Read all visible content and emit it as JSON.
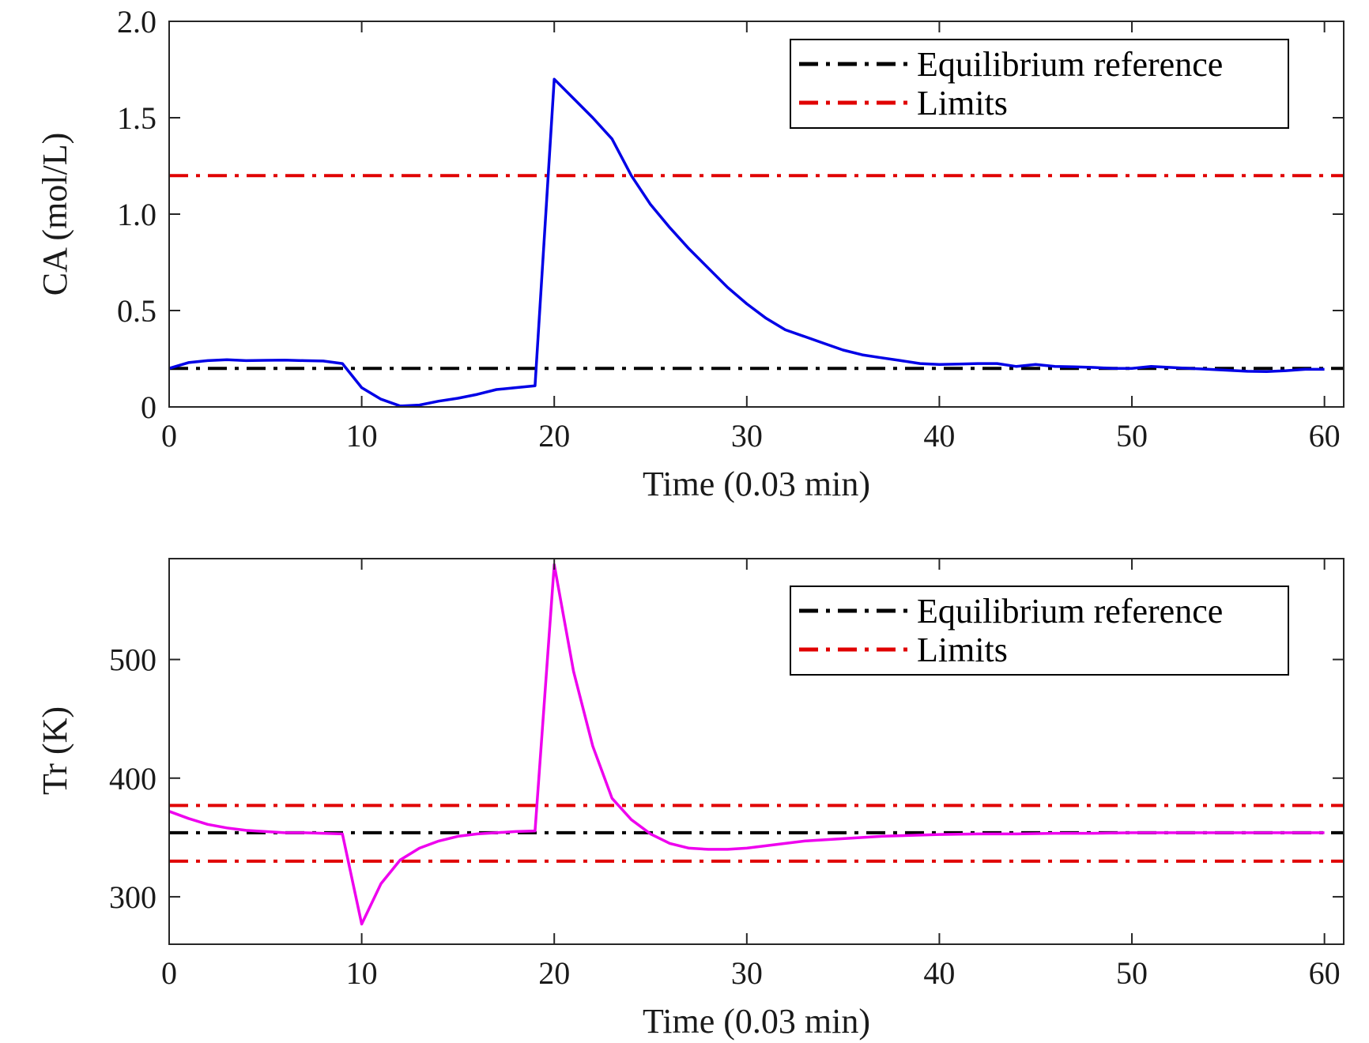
{
  "chart_data": [
    {
      "type": "line",
      "xlabel": "Time (0.03 min)",
      "ylabel": "CA (mol/L)",
      "xlim": [
        0,
        61
      ],
      "ylim": [
        0,
        2.0
      ],
      "xticks": [
        0,
        10,
        20,
        30,
        40,
        50,
        60
      ],
      "xtick_labels": [
        "0",
        "10",
        "20",
        "30",
        "40",
        "50",
        "60"
      ],
      "yticks": [
        0,
        0.5,
        1.0,
        1.5,
        2.0
      ],
      "ytick_labels": [
        "0",
        "0.5",
        "1.0",
        "1.5",
        "2.0"
      ],
      "grid": false,
      "legend_position": "top-right",
      "legend": [
        {
          "label": "Equilibrium reference",
          "color": "#000000"
        },
        {
          "label": "Limits",
          "color": "#e00000"
        }
      ],
      "reference_lines": [
        {
          "y": 0.2,
          "color": "#000000",
          "style": "dash-dot"
        },
        {
          "y": 1.2,
          "color": "#e00000",
          "style": "dash-dot"
        }
      ],
      "series": [
        {
          "color": "#0000e6",
          "x": [
            0,
            1,
            2,
            3,
            4,
            5,
            6,
            7,
            8,
            9,
            10,
            11,
            12,
            13,
            14,
            15,
            16,
            17,
            18,
            19,
            20,
            21,
            22,
            23,
            24,
            25,
            26,
            27,
            28,
            29,
            30,
            31,
            32,
            33,
            34,
            35,
            36,
            37,
            38,
            39,
            40,
            41,
            42,
            43,
            44,
            45,
            46,
            47,
            48,
            49,
            50,
            51,
            52,
            53,
            54,
            55,
            56,
            57,
            58,
            59,
            60
          ],
          "y": [
            0.2,
            0.23,
            0.24,
            0.245,
            0.24,
            0.242,
            0.243,
            0.24,
            0.238,
            0.225,
            0.1,
            0.04,
            0.005,
            0.01,
            0.03,
            0.045,
            0.065,
            0.09,
            0.1,
            0.11,
            1.7,
            1.6,
            1.5,
            1.39,
            1.2,
            1.05,
            0.93,
            0.82,
            0.72,
            0.62,
            0.535,
            0.46,
            0.4,
            0.365,
            0.33,
            0.295,
            0.27,
            0.255,
            0.24,
            0.225,
            0.22,
            0.222,
            0.225,
            0.225,
            0.21,
            0.22,
            0.21,
            0.208,
            0.205,
            0.2,
            0.2,
            0.21,
            0.205,
            0.2,
            0.195,
            0.19,
            0.185,
            0.183,
            0.188,
            0.195,
            0.195
          ]
        }
      ]
    },
    {
      "type": "line",
      "xlabel": "Time (0.03 min)",
      "ylabel": "Tr (K)",
      "xlim": [
        0,
        61
      ],
      "ylim": [
        260,
        585
      ],
      "xticks": [
        0,
        10,
        20,
        30,
        40,
        50,
        60
      ],
      "xtick_labels": [
        "0",
        "10",
        "20",
        "30",
        "40",
        "50",
        "60"
      ],
      "yticks": [
        300,
        400,
        500
      ],
      "ytick_labels": [
        "300",
        "400",
        "500"
      ],
      "grid": false,
      "legend_position": "top-right",
      "legend": [
        {
          "label": "Equilibrium reference",
          "color": "#000000"
        },
        {
          "label": "Limits",
          "color": "#e00000"
        }
      ],
      "reference_lines": [
        {
          "y": 354,
          "color": "#000000",
          "style": "dash-dot"
        },
        {
          "y": 377,
          "color": "#e00000",
          "style": "dash-dot"
        },
        {
          "y": 330,
          "color": "#e00000",
          "style": "dash-dot"
        }
      ],
      "series": [
        {
          "color": "#ee00ee",
          "x": [
            0,
            1,
            2,
            3,
            4,
            5,
            6,
            7,
            8,
            9,
            10,
            11,
            12,
            13,
            14,
            15,
            16,
            17,
            18,
            19,
            20,
            21,
            22,
            23,
            24,
            25,
            26,
            27,
            28,
            29,
            30,
            31,
            32,
            33,
            34,
            35,
            36,
            37,
            38,
            39,
            40,
            42,
            44,
            46,
            48,
            50,
            52,
            54,
            56,
            58,
            60
          ],
          "y": [
            372,
            366,
            361,
            358,
            356,
            355,
            354,
            354,
            353.5,
            353,
            277,
            311,
            331,
            341,
            347,
            351,
            353,
            354,
            355,
            355.5,
            580,
            490,
            427,
            383,
            365,
            353,
            345,
            341,
            340,
            340,
            341,
            343,
            345,
            347,
            348,
            349,
            350,
            351,
            351.5,
            352,
            352.5,
            353,
            353,
            353.5,
            353.5,
            354,
            354,
            354,
            354,
            354,
            354
          ]
        }
      ]
    }
  ]
}
